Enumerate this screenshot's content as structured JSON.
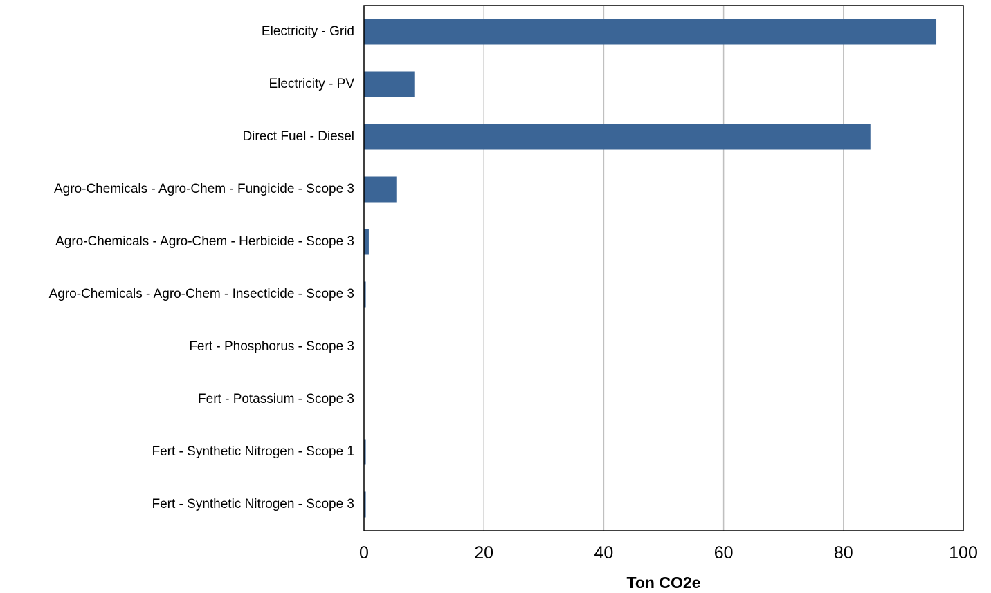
{
  "chart_data": {
    "type": "bar",
    "orientation": "horizontal",
    "title": "",
    "xlabel": "Ton CO2e",
    "ylabel": "",
    "xlim": [
      0,
      100
    ],
    "x_ticks": [
      0,
      20,
      40,
      60,
      80,
      100
    ],
    "x_tick_labels": [
      "0",
      "20",
      "40",
      "60",
      "80",
      "100"
    ],
    "grid": "vertical",
    "legend": "none",
    "bar_color": "#3b6596",
    "grid_color": "#bfbfbf",
    "categories": [
      "Electricity - Grid",
      "Electricity - PV",
      "Direct Fuel - Diesel",
      "Agro-Chemicals - Agro-Chem - Fungicide - Scope 3",
      "Agro-Chemicals - Agro-Chem - Herbicide - Scope 3",
      "Agro-Chemicals - Agro-Chem - Insecticide - Scope 3",
      "Fert - Phosphorus - Scope 3",
      "Fert - Potassium - Scope 3",
      "Fert - Synthetic Nitrogen - Scope 1",
      "Fert - Synthetic Nitrogen - Scope 3"
    ],
    "values": [
      95.5,
      8.4,
      84.5,
      5.4,
      0.8,
      0.3,
      0.05,
      0.05,
      0.3,
      0.3
    ]
  }
}
